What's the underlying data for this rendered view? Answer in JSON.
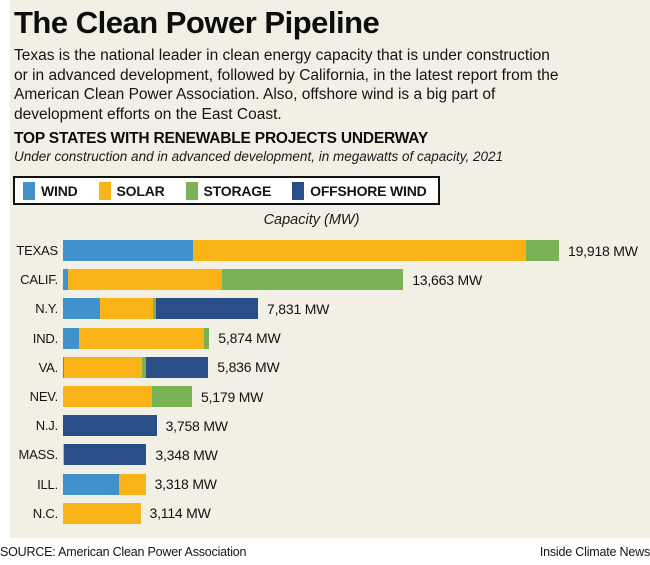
{
  "header": {
    "title": "The Clean Power Pipeline",
    "intro": "Texas is the national leader in clean energy capacity that is under construction\nor in advanced development, followed by California, in the latest report from the\nAmerican Clean Power Association. Also, offshore wind is a big part of\ndevelopment efforts on the East Coast."
  },
  "chart_header": {
    "title": "TOP STATES WITH RENEWABLE PROJECTS UNDERWAY",
    "note": "Under construction and in advanced development, in megawatts of capacity, 2021",
    "axis_title": "Capacity (MW)"
  },
  "footer": {
    "source": "SOURCE: American Clean Power Association",
    "credit": "Inside Climate News"
  },
  "colors": {
    "background_panel": "#f2f0e4",
    "background_page": "#ffffff",
    "text": "#141414",
    "wind": "#4191ca",
    "solar": "#fbb417",
    "storage": "#7ab355",
    "offshore_wind": "#2a4e87"
  },
  "chart_data": {
    "type": "bar",
    "orientation": "horizontal",
    "stacked": true,
    "unit": "MW",
    "title": "TOP STATES WITH RENEWABLE PROJECTS UNDERWAY",
    "subtitle": "Under construction and in advanced development, in megawatts of capacity, 2021",
    "xlabel": "Capacity (MW)",
    "x_max": 19918,
    "grid": false,
    "legend_position": "top-left boxed",
    "series": [
      {
        "key": "wind",
        "label": "WIND",
        "color": "#4191ca"
      },
      {
        "key": "solar",
        "label": "SOLAR",
        "color": "#fbb417"
      },
      {
        "key": "storage",
        "label": "STORAGE",
        "color": "#7ab355"
      },
      {
        "key": "offshore_wind",
        "label": "OFFSHORE WIND",
        "color": "#2a4e87"
      }
    ],
    "rows": [
      {
        "state": "TEXAS",
        "total": 19918,
        "value_label": "19,918 MW",
        "segments": {
          "wind": 5220,
          "solar": 13370,
          "storage": 1328,
          "offshore_wind": 0
        }
      },
      {
        "state": "CALIF.",
        "total": 13663,
        "value_label": "13,663 MW",
        "segments": {
          "wind": 187,
          "solar": 6210,
          "storage": 7266,
          "offshore_wind": 0
        }
      },
      {
        "state": "N.Y.",
        "total": 7831,
        "value_label": "7,831 MW",
        "segments": {
          "wind": 1502,
          "solar": 2112,
          "storage": 136,
          "offshore_wind": 4081
        }
      },
      {
        "state": "IND.",
        "total": 5874,
        "value_label": "5,874 MW",
        "segments": {
          "wind": 629,
          "solar": 5045,
          "storage": 200,
          "offshore_wind": 0
        }
      },
      {
        "state": "VA.",
        "total": 5836,
        "value_label": "5,836 MW",
        "segments": {
          "wind": 60,
          "solar": 3100,
          "storage": 159,
          "offshore_wind": 2517
        }
      },
      {
        "state": "NEV.",
        "total": 5179,
        "value_label": "5,179 MW",
        "segments": {
          "wind": 0,
          "solar": 3586,
          "storage": 1593,
          "offshore_wind": 0
        }
      },
      {
        "state": "N.J.",
        "total": 3758,
        "value_label": "3,758 MW",
        "segments": {
          "wind": 0,
          "solar": 0,
          "storage": 0,
          "offshore_wind": 3758
        }
      },
      {
        "state": "MASS.",
        "total": 3348,
        "value_label": "3,348 MW",
        "segments": {
          "wind": 0,
          "solar": 60,
          "storage": 0,
          "offshore_wind": 3288
        }
      },
      {
        "state": "ILL.",
        "total": 3318,
        "value_label": "3,318 MW",
        "segments": {
          "wind": 2253,
          "solar": 1065,
          "storage": 0,
          "offshore_wind": 0
        }
      },
      {
        "state": "N.C.",
        "total": 3114,
        "value_label": "3,114 MW",
        "segments": {
          "wind": 0,
          "solar": 3114,
          "storage": 0,
          "offshore_wind": 0
        }
      }
    ]
  }
}
